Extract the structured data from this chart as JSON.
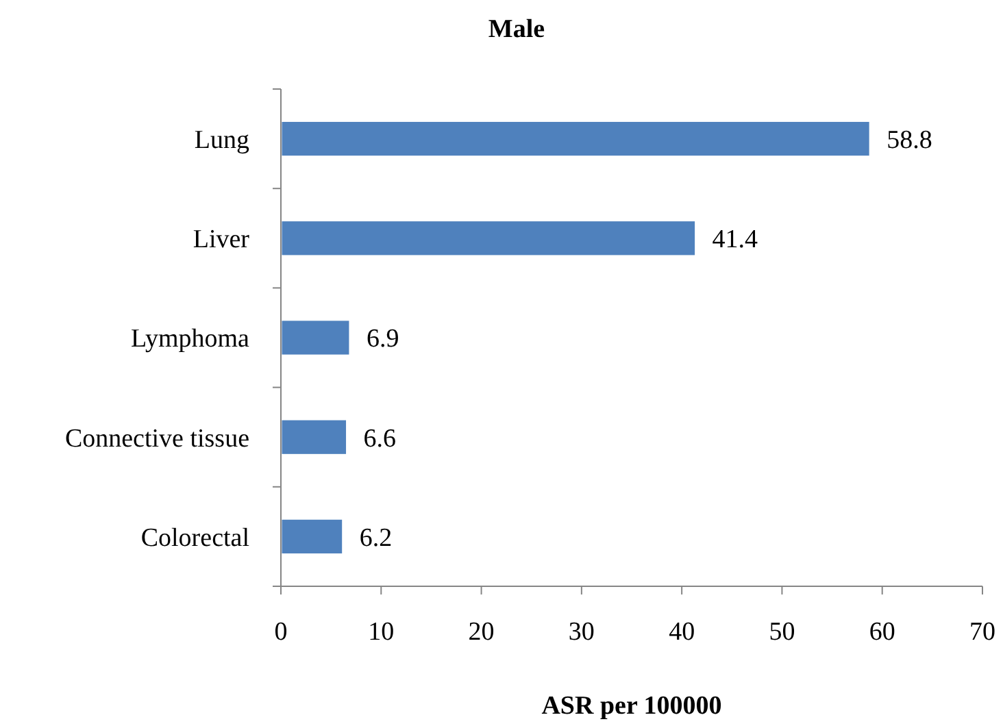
{
  "chart_data": {
    "type": "bar",
    "orientation": "horizontal",
    "title": "Male",
    "xlabel": "ASR per 100000",
    "categories": [
      "Lung",
      "Liver",
      "Lymphoma",
      "Connective tissue",
      "Colorectal"
    ],
    "values": [
      58.8,
      41.4,
      6.9,
      6.6,
      6.2
    ],
    "color": "#4f81bd",
    "xlim": [
      0,
      70
    ],
    "xticks": [
      0,
      10,
      20,
      30,
      40,
      50,
      60,
      70
    ],
    "data_labels": true,
    "grid": false
  }
}
